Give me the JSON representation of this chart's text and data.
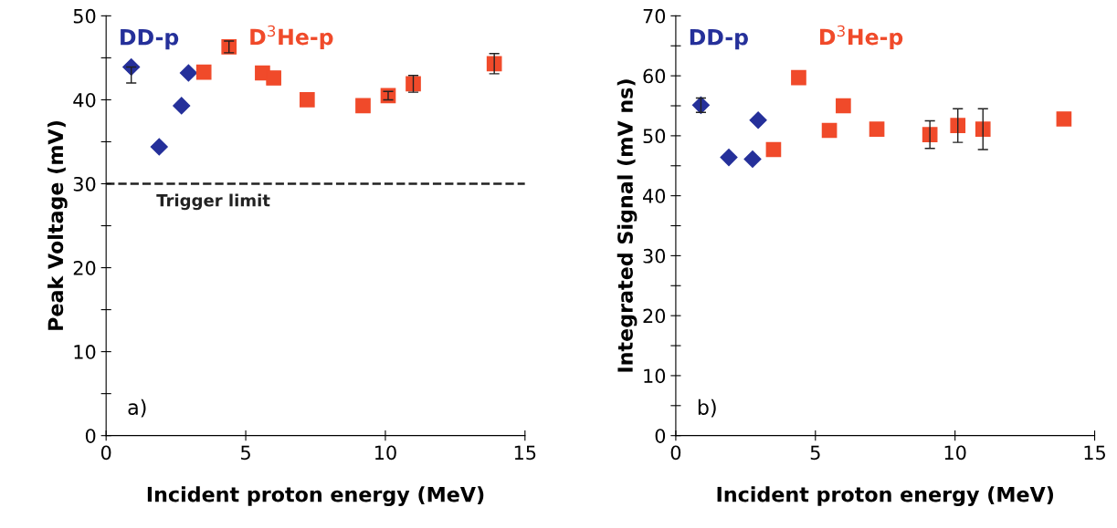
{
  "chart_data": [
    {
      "type": "scatter",
      "xlabel": "Incident proton energy (MeV)",
      "ylabel": "Peak Voltage (mV)",
      "xlim": [
        0,
        15
      ],
      "xticks": [
        0,
        5,
        10,
        15
      ],
      "ylim": [
        0,
        50
      ],
      "yticks": [
        0,
        {
          "value": 5,
          "label": null
        },
        10,
        {
          "value": 15,
          "label": null
        },
        20,
        {
          "value": 25,
          "label": null
        },
        30,
        {
          "value": 35,
          "label": null
        },
        40,
        {
          "value": 45,
          "label": null
        },
        50
      ],
      "grid": false,
      "legend": false,
      "annotations": [
        "a)"
      ],
      "ref_lines": [
        {
          "axis": "y",
          "value": 30,
          "label": "Trigger limit",
          "color": "#222222",
          "line_style": "dashed"
        }
      ],
      "series": [
        {
          "name": "DD-p",
          "color": "#25309a",
          "marker": "diamond",
          "x": [
            0.9,
            1.9,
            2.7,
            2.95
          ],
          "values": [
            43.9,
            34.4,
            39.3,
            43.2
          ],
          "errors": [
            [
              42.0,
              43.9
            ],
            null,
            null,
            null
          ]
        },
        {
          "name": "D$^{3}$He-p",
          "color": "#f04a2a",
          "marker": "square",
          "x": [
            3.5,
            4.4,
            5.6,
            6.0,
            7.2,
            9.2,
            10.1,
            11.0,
            13.9
          ],
          "values": [
            43.3,
            46.3,
            43.2,
            42.6,
            40.0,
            39.3,
            40.5,
            41.9,
            44.3
          ],
          "errors": [
            null,
            0.7,
            null,
            null,
            null,
            null,
            0.5,
            1.0,
            1.2
          ]
        }
      ]
    },
    {
      "type": "scatter",
      "xlabel": "Incident proton energy (MeV)",
      "ylabel": "Integrated Signal (mV ns)",
      "xlim": [
        0,
        15
      ],
      "xticks": [
        0,
        5,
        10,
        15
      ],
      "ylim": [
        0,
        70
      ],
      "yticks": [
        0,
        {
          "value": 5,
          "label": null
        },
        10,
        {
          "value": 15,
          "label": null
        },
        20,
        {
          "value": 25,
          "label": null
        },
        30,
        {
          "value": 35,
          "label": null
        },
        40,
        {
          "value": 45,
          "label": null
        },
        50,
        {
          "value": 55,
          "label": null
        },
        60,
        {
          "value": 65,
          "label": null
        },
        70
      ],
      "grid": false,
      "legend": false,
      "annotations": [
        "b)"
      ],
      "series": [
        {
          "name": "DD-p",
          "color": "#25309a",
          "marker": "diamond",
          "x": [
            0.9,
            1.9,
            2.75,
            2.95
          ],
          "values": [
            55.1,
            46.4,
            46.1,
            52.6
          ],
          "errors": [
            1.2,
            null,
            null,
            null
          ]
        },
        {
          "name": "D$^{3}$He-p",
          "color": "#f04a2a",
          "marker": "square",
          "x": [
            3.5,
            4.4,
            5.5,
            6.0,
            7.2,
            9.1,
            10.1,
            11.0,
            13.9
          ],
          "values": [
            47.7,
            59.7,
            50.9,
            55.0,
            51.1,
            50.2,
            51.7,
            51.1,
            52.8
          ],
          "errors": [
            null,
            null,
            null,
            null,
            null,
            2.3,
            2.8,
            3.4,
            null
          ]
        }
      ]
    }
  ]
}
